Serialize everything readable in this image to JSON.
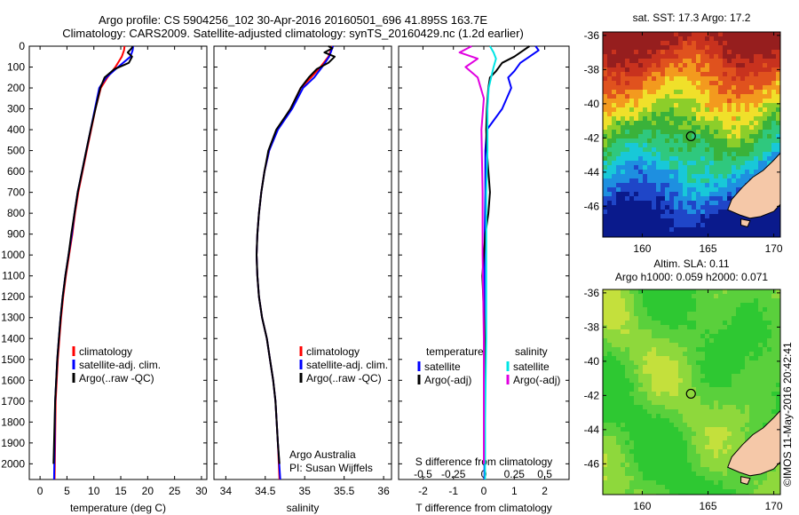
{
  "header": {
    "line1": "Argo profile: CS 5904256_102 30-Apr-2016 20160501_696 41.895S 163.7E",
    "line2": "Climatology: CARS2009. Satellite-adjusted climatology: synTS_20160429.nc (1.2d earlier)"
  },
  "credit": {
    "org": "Argo Australia",
    "pi": "PI: Susan Wijffels"
  },
  "timestamp": "©IMOS 11-May-2016 20:42:41",
  "colors": {
    "climatology": "#ff0000",
    "satellite": "#0000ff",
    "argo": "#000000",
    "sal_satellite": "#00e5e5",
    "sal_argo": "#e000e0",
    "land": "#f5c8a8"
  },
  "chart_data": [
    {
      "id": "temperature",
      "type": "line",
      "xlabel": "temperature (deg C)",
      "ylabel": "",
      "xlim": [
        -2,
        31
      ],
      "ylim": [
        2075,
        0
      ],
      "xticks": [
        0,
        5,
        10,
        15,
        20,
        25,
        30
      ],
      "yticks": [
        0,
        100,
        200,
        300,
        400,
        500,
        600,
        700,
        800,
        900,
        1000,
        1100,
        1200,
        1300,
        1400,
        1500,
        1600,
        1700,
        1800,
        1900,
        2000
      ],
      "legend": [
        "climatology",
        "satellite-adj. clim.",
        "Argo(..raw -QC)"
      ],
      "legend_position": "lower-right",
      "series": [
        {
          "name": "climatology",
          "color": "#ff0000",
          "x": [
            15.7,
            15.6,
            15.2,
            14.0,
            12.5,
            11.3,
            10.3,
            9.5,
            8.7,
            7.9,
            7.1,
            6.5,
            6.0,
            5.4,
            4.8,
            4.3,
            3.9,
            3.6,
            3.3,
            3.1,
            2.9,
            2.8,
            2.7
          ],
          "y": [
            0,
            20,
            50,
            100,
            150,
            200,
            300,
            400,
            500,
            600,
            700,
            800,
            900,
            1000,
            1100,
            1200,
            1300,
            1400,
            1500,
            1600,
            1700,
            1900,
            2075
          ]
        },
        {
          "name": "satellite-adj. clim.",
          "color": "#0000ff",
          "x": [
            17.3,
            17.2,
            16.8,
            14.5,
            12.3,
            11.0,
            10.2,
            9.4,
            8.6,
            7.8,
            7.0,
            6.4,
            5.9,
            5.3,
            4.7,
            4.2,
            3.8,
            3.5,
            3.2,
            3.0,
            2.8,
            2.7,
            2.6
          ],
          "y": [
            0,
            20,
            50,
            100,
            150,
            200,
            300,
            400,
            500,
            600,
            700,
            800,
            900,
            1000,
            1100,
            1200,
            1300,
            1400,
            1500,
            1600,
            1700,
            1900,
            2075
          ]
        },
        {
          "name": "Argo(..raw -QC)",
          "color": "#000000",
          "x": [
            17.2,
            17.0,
            16.3,
            17.1,
            16.5,
            13.8,
            12.0,
            11.2,
            10.3,
            9.4,
            8.6,
            7.8,
            7.0,
            6.4,
            5.8,
            5.3,
            4.7,
            4.2,
            3.8,
            3.5,
            3.2,
            3.0,
            2.8,
            2.6,
            2.5
          ],
          "y": [
            0,
            10,
            30,
            50,
            80,
            110,
            150,
            200,
            300,
            400,
            500,
            600,
            700,
            800,
            900,
            1000,
            1100,
            1200,
            1300,
            1400,
            1500,
            1600,
            1700,
            1900,
            2000
          ]
        }
      ]
    },
    {
      "id": "salinity",
      "type": "line",
      "xlabel": "salinity",
      "ylabel": "",
      "xlim": [
        33.85,
        36.1
      ],
      "ylim": [
        2075,
        0
      ],
      "xticks": [
        34,
        34.5,
        35,
        35.5,
        36
      ],
      "legend": [
        "climatology",
        "satellite-adj. clim.",
        "Argo(..raw -QC)"
      ],
      "legend_position": "lower-right",
      "series": [
        {
          "name": "climatology",
          "color": "#ff0000",
          "x": [
            35.35,
            35.33,
            35.3,
            35.2,
            35.08,
            34.95,
            34.82,
            34.65,
            34.55,
            34.49,
            34.45,
            34.42,
            34.4,
            34.39,
            34.4,
            34.42,
            34.46,
            34.52,
            34.56,
            34.6,
            34.63,
            34.66,
            34.68
          ],
          "y": [
            0,
            20,
            50,
            100,
            150,
            200,
            300,
            400,
            500,
            600,
            700,
            800,
            900,
            1000,
            1100,
            1200,
            1300,
            1400,
            1500,
            1600,
            1700,
            1900,
            2075
          ]
        },
        {
          "name": "satellite-adj. clim.",
          "color": "#0000ff",
          "x": [
            35.36,
            35.34,
            35.31,
            35.22,
            35.12,
            34.98,
            34.84,
            34.66,
            34.55,
            34.49,
            34.45,
            34.42,
            34.4,
            34.39,
            34.4,
            34.42,
            34.46,
            34.52,
            34.56,
            34.6,
            34.63,
            34.66,
            34.69
          ],
          "y": [
            0,
            20,
            50,
            100,
            150,
            200,
            300,
            400,
            500,
            600,
            700,
            800,
            900,
            1000,
            1100,
            1200,
            1300,
            1400,
            1500,
            1600,
            1700,
            1900,
            2075
          ]
        },
        {
          "name": "Argo(..raw -QC)",
          "color": "#000000",
          "x": [
            35.3,
            35.35,
            35.25,
            35.38,
            35.3,
            35.15,
            35.05,
            34.95,
            34.82,
            34.64,
            34.54,
            34.49,
            34.45,
            34.42,
            34.4,
            34.39,
            34.4,
            34.42,
            34.46,
            34.52,
            34.56,
            34.6,
            34.63,
            34.66,
            34.68
          ],
          "y": [
            0,
            10,
            30,
            50,
            80,
            110,
            150,
            200,
            300,
            400,
            500,
            600,
            700,
            800,
            900,
            1000,
            1100,
            1200,
            1300,
            1400,
            1500,
            1600,
            1700,
            1900,
            2000
          ]
        }
      ]
    },
    {
      "id": "difference",
      "type": "line",
      "xlabel": "T difference from climatology",
      "x2label": "S difference from climatology",
      "ylabel": "",
      "xlim": [
        -2.8,
        2.8
      ],
      "ylim": [
        2075,
        0
      ],
      "xticks": [
        -2,
        -1,
        0,
        1,
        2
      ],
      "x2ticks": [
        -0.5,
        -0.25,
        0,
        0.25,
        0.5
      ],
      "x2ticklabels": [
        "-0.5",
        "-0.25",
        "0",
        "0.25",
        "0.5"
      ],
      "legend_groups": [
        {
          "heading": "temperature",
          "items": [
            "satellite",
            "Argo(-adj)"
          ]
        },
        {
          "heading": "salinity",
          "items": [
            "satellite",
            "Argo(-adj)"
          ]
        }
      ],
      "series": [
        {
          "name": "temperature satellite",
          "color": "#0000ff",
          "x": [
            1.7,
            1.8,
            1.5,
            1.2,
            1.0,
            0.8,
            0.9,
            0.6,
            0.1,
            0.05,
            0.05,
            0.03,
            0.02,
            0.02,
            0.02,
            0.02,
            0.02,
            0.02,
            0.02
          ],
          "y": [
            0,
            20,
            50,
            80,
            120,
            150,
            200,
            300,
            400,
            500,
            700,
            900,
            1100,
            1300,
            1500,
            1700,
            1800,
            1900,
            2075
          ]
        },
        {
          "name": "temperature Argo(-adj)",
          "color": "#000000",
          "x": [
            1.5,
            1.3,
            1.0,
            0.6,
            0.4,
            0.2,
            0.15,
            0.1,
            0.08,
            0.1,
            0.15,
            0.2,
            0.15,
            0.05,
            0.0,
            -0.05,
            -0.02,
            0.03,
            0.05,
            0.05,
            0.03,
            0.02,
            0.01
          ],
          "y": [
            0,
            20,
            50,
            80,
            120,
            150,
            200,
            300,
            400,
            500,
            600,
            700,
            800,
            900,
            1000,
            1100,
            1200,
            1400,
            1500,
            1600,
            1700,
            1900,
            2000
          ]
        },
        {
          "name": "salinity satellite",
          "color": "#00e5e5",
          "x": [
            0.05,
            0.08,
            0.1,
            0.08,
            0.06,
            0.04,
            0.03,
            0.03,
            0.02,
            0.02,
            0.02,
            0.01,
            0.01
          ],
          "y": [
            0,
            30,
            60,
            100,
            150,
            200,
            300,
            500,
            700,
            1000,
            1400,
            1800,
            2075
          ]
        },
        {
          "name": "salinity Argo(-adj)",
          "color": "#e000e0",
          "x": [
            -0.1,
            -0.2,
            -0.05,
            -0.15,
            -0.05,
            0.0,
            -0.02,
            -0.01,
            -0.01,
            0.0,
            0.0,
            0.0
          ],
          "y": [
            0,
            30,
            60,
            100,
            150,
            250,
            400,
            700,
            1000,
            1400,
            1800,
            2000
          ]
        }
      ]
    }
  ],
  "sst_map": {
    "title": "sat. SST: 17.3  Argo: 17.2",
    "xticks": [
      "160",
      "165",
      "170"
    ],
    "yticks": [
      "-36",
      "-38",
      "-40",
      "-42",
      "-44",
      "-46"
    ],
    "lon_range": [
      157,
      170.5
    ],
    "lat_range": [
      -47.8,
      -35.8
    ],
    "argo_position": [
      163.7,
      -41.9
    ],
    "colormap": [
      "#0a1a8c",
      "#1f46c8",
      "#1e8fe0",
      "#18c8d8",
      "#2fc87e",
      "#3ab23a",
      "#8cce2a",
      "#f0e02a",
      "#f39a1e",
      "#e0521e",
      "#c8321e",
      "#961e1e"
    ]
  },
  "sla_map": {
    "title1": "Altim. SLA: 0.11",
    "title2": "Argo h1000: 0.059  h2000: 0.071",
    "xticks": [
      "160",
      "165",
      "170"
    ],
    "yticks": [
      "-36",
      "-38",
      "-40",
      "-42",
      "-44",
      "-46"
    ],
    "lon_range": [
      157,
      170.5
    ],
    "lat_range": [
      -47.8,
      -35.8
    ],
    "argo_position": [
      163.7,
      -41.9
    ],
    "colormap": [
      "#2ec832",
      "#5ad03c",
      "#8ed83c",
      "#c4e03c",
      "#f0d23c",
      "#f0a03c"
    ]
  }
}
